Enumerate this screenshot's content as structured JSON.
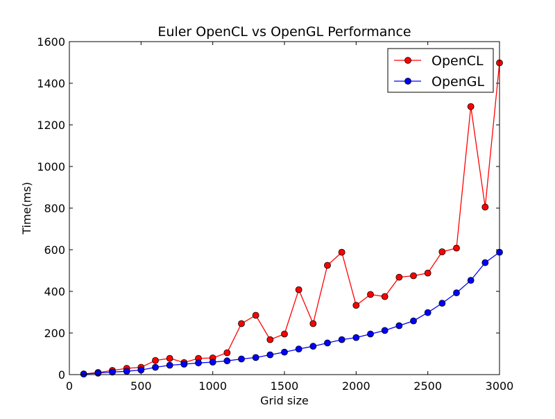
{
  "chart_data": {
    "type": "line",
    "title": "Euler OpenCL vs OpenGL Performance",
    "xlabel": "Grid size",
    "ylabel": "Time(ms)",
    "xlim": [
      0,
      3000
    ],
    "ylim": [
      0,
      1600
    ],
    "xticks": [
      0,
      500,
      1000,
      1500,
      2000,
      2500,
      3000
    ],
    "yticks": [
      0,
      200,
      400,
      600,
      800,
      1000,
      1200,
      1400,
      1600
    ],
    "grid": false,
    "legend_position": "top-right",
    "x": [
      100,
      200,
      300,
      400,
      500,
      600,
      700,
      800,
      900,
      1000,
      1100,
      1200,
      1300,
      1400,
      1500,
      1600,
      1700,
      1800,
      1900,
      2000,
      2100,
      2200,
      2300,
      2400,
      2500,
      2600,
      2700,
      2800,
      2900,
      3000
    ],
    "series": [
      {
        "name": "OpenCL",
        "color": "#ff0000",
        "marker": "circle",
        "values": [
          3,
          10,
          20,
          30,
          35,
          68,
          78,
          58,
          78,
          80,
          105,
          245,
          285,
          168,
          195,
          408,
          245,
          525,
          588,
          333,
          385,
          375,
          468,
          475,
          488,
          590,
          608,
          1288,
          805,
          1498
        ]
      },
      {
        "name": "OpenGL",
        "color": "#0000ff",
        "marker": "circle",
        "values": [
          3,
          7,
          12,
          16,
          22,
          35,
          45,
          50,
          56,
          60,
          66,
          75,
          82,
          95,
          108,
          123,
          136,
          152,
          168,
          178,
          195,
          212,
          235,
          258,
          298,
          343,
          393,
          453,
          538,
          588
        ]
      }
    ]
  }
}
